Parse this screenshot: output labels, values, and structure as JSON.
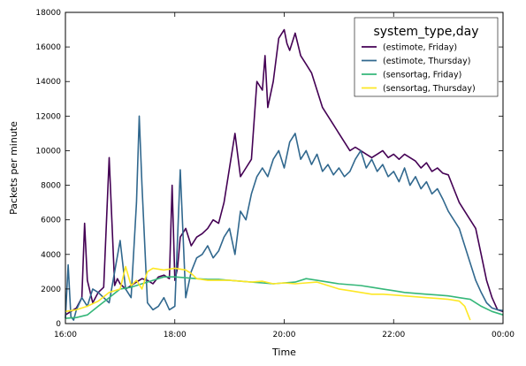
{
  "chart_data": {
    "type": "line",
    "title": "",
    "xlabel": "Time",
    "ylabel": "Packets per minute",
    "xlim": [
      0,
      8
    ],
    "ylim": [
      0,
      18000
    ],
    "grid": false,
    "legend_position": "top-right",
    "legend_title": "system_type,day",
    "x_ticks": [
      {
        "value": 0,
        "label": "16:00"
      },
      {
        "value": 2,
        "label": "18:00"
      },
      {
        "value": 4,
        "label": "20:00"
      },
      {
        "value": 6,
        "label": "22:00"
      },
      {
        "value": 8,
        "label": "00:00"
      }
    ],
    "y_ticks": [
      {
        "value": 0,
        "label": "0"
      },
      {
        "value": 2000,
        "label": "2000"
      },
      {
        "value": 4000,
        "label": "4000"
      },
      {
        "value": 6000,
        "label": "6000"
      },
      {
        "value": 8000,
        "label": "8000"
      },
      {
        "value": 10000,
        "label": "10000"
      },
      {
        "value": 12000,
        "label": "12000"
      },
      {
        "value": 14000,
        "label": "14000"
      },
      {
        "value": 16000,
        "label": "16000"
      },
      {
        "value": 18000,
        "label": "18000"
      }
    ],
    "series": [
      {
        "name": "(estimote, Friday)",
        "color": "#440154",
        "x": [
          0,
          0.1,
          0.2,
          0.3,
          0.35,
          0.4,
          0.5,
          0.6,
          0.7,
          0.8,
          0.9,
          0.95,
          1.0,
          1.1,
          1.2,
          1.3,
          1.4,
          1.5,
          1.6,
          1.7,
          1.8,
          1.9,
          1.95,
          2.0,
          2.05,
          2.1,
          2.2,
          2.3,
          2.4,
          2.5,
          2.6,
          2.7,
          2.8,
          2.9,
          3.0,
          3.1,
          3.2,
          3.3,
          3.4,
          3.5,
          3.6,
          3.65,
          3.7,
          3.8,
          3.9,
          4.0,
          4.05,
          4.1,
          4.2,
          4.3,
          4.4,
          4.5,
          4.6,
          4.7,
          4.8,
          4.9,
          5.0,
          5.1,
          5.2,
          5.3,
          5.4,
          5.5,
          5.6,
          5.7,
          5.8,
          5.9,
          6.0,
          6.1,
          6.2,
          6.3,
          6.4,
          6.5,
          6.6,
          6.7,
          6.8,
          6.9,
          7.0,
          7.1,
          7.2,
          7.3,
          7.4,
          7.5,
          7.6,
          7.7,
          7.8,
          7.9,
          8.0
        ],
        "y": [
          500,
          700,
          900,
          1500,
          5800,
          2500,
          1200,
          1800,
          2100,
          9600,
          2200,
          2600,
          2300,
          2000,
          2200,
          2400,
          2600,
          2500,
          2300,
          2700,
          2800,
          2600,
          8000,
          2500,
          3200,
          5000,
          5500,
          4500,
          5000,
          5200,
          5500,
          6000,
          5800,
          7000,
          9000,
          11000,
          8500,
          9000,
          9500,
          14000,
          13500,
          15500,
          12500,
          14000,
          16500,
          17000,
          16200,
          15800,
          16800,
          15500,
          15000,
          14500,
          13500,
          12500,
          12000,
          11500,
          11000,
          10500,
          10000,
          10200,
          10000,
          9800,
          9600,
          9800,
          10000,
          9600,
          9800,
          9500,
          9800,
          9600,
          9400,
          9000,
          9300,
          8800,
          9000,
          8700,
          8600,
          7800,
          7000,
          6500,
          6000,
          5500,
          4000,
          2500,
          1500,
          800,
          700
        ]
      },
      {
        "name": "(estimote, Thursday)",
        "color": "#31688e",
        "x": [
          0,
          0.05,
          0.1,
          0.15,
          0.2,
          0.3,
          0.4,
          0.5,
          0.6,
          0.7,
          0.8,
          0.9,
          1.0,
          1.1,
          1.2,
          1.3,
          1.35,
          1.4,
          1.5,
          1.6,
          1.7,
          1.8,
          1.9,
          2.0,
          2.1,
          2.2,
          2.3,
          2.4,
          2.5,
          2.6,
          2.7,
          2.8,
          2.9,
          3.0,
          3.1,
          3.2,
          3.3,
          3.4,
          3.5,
          3.6,
          3.7,
          3.8,
          3.9,
          4.0,
          4.1,
          4.2,
          4.3,
          4.4,
          4.5,
          4.6,
          4.7,
          4.8,
          4.9,
          5.0,
          5.1,
          5.2,
          5.3,
          5.4,
          5.5,
          5.6,
          5.7,
          5.8,
          5.9,
          6.0,
          6.1,
          6.2,
          6.3,
          6.4,
          6.5,
          6.6,
          6.7,
          6.8,
          6.9,
          7.0,
          7.1,
          7.2,
          7.3,
          7.4,
          7.5,
          7.6,
          7.7,
          7.8,
          7.9,
          8.0
        ],
        "y": [
          300,
          3400,
          400,
          200,
          800,
          1500,
          1000,
          2000,
          1800,
          1500,
          1200,
          3000,
          4800,
          2000,
          1500,
          7000,
          12000,
          8000,
          1200,
          800,
          1000,
          1500,
          800,
          1000,
          8900,
          1500,
          3000,
          3800,
          4000,
          4500,
          3800,
          4200,
          5000,
          5500,
          4000,
          6500,
          6000,
          7500,
          8500,
          9000,
          8500,
          9500,
          10000,
          9000,
          10500,
          11000,
          9500,
          10000,
          9200,
          9800,
          8800,
          9200,
          8600,
          9000,
          8500,
          8800,
          9500,
          10000,
          9000,
          9500,
          8800,
          9200,
          8500,
          8800,
          8200,
          9000,
          8000,
          8500,
          7800,
          8200,
          7500,
          7800,
          7200,
          6500,
          6000,
          5500,
          4500,
          3500,
          2500,
          1800,
          1200,
          900,
          800,
          750
        ]
      },
      {
        "name": "(sensortag, Friday)",
        "color": "#35b779",
        "x": [
          0,
          0.2,
          0.4,
          0.6,
          0.8,
          1.0,
          1.2,
          1.4,
          1.6,
          1.8,
          2.0,
          2.2,
          2.4,
          2.6,
          2.8,
          3.0,
          3.2,
          3.4,
          3.6,
          3.8,
          4.0,
          4.2,
          4.4,
          4.6,
          4.8,
          5.0,
          5.2,
          5.4,
          5.6,
          5.8,
          6.0,
          6.2,
          6.4,
          6.6,
          6.8,
          7.0,
          7.2,
          7.4,
          7.6,
          7.8,
          8.0
        ],
        "y": [
          300,
          350,
          500,
          1000,
          1500,
          2000,
          2100,
          2300,
          2500,
          2700,
          2700,
          2650,
          2600,
          2550,
          2550,
          2500,
          2450,
          2400,
          2350,
          2300,
          2350,
          2400,
          2600,
          2500,
          2400,
          2300,
          2250,
          2200,
          2100,
          2000,
          1900,
          1800,
          1750,
          1700,
          1650,
          1600,
          1500,
          1400,
          1000,
          700,
          500
        ]
      },
      {
        "name": "(sensortag, Thursday)",
        "color": "#fde725",
        "x": [
          0,
          0.2,
          0.4,
          0.6,
          0.8,
          1.0,
          1.1,
          1.2,
          1.3,
          1.4,
          1.5,
          1.6,
          1.8,
          2.0,
          2.2,
          2.3,
          2.4,
          2.6,
          2.8,
          3.0,
          3.2,
          3.4,
          3.6,
          3.8,
          4.0,
          4.2,
          4.4,
          4.6,
          4.8,
          5.0,
          5.2,
          5.4,
          5.6,
          5.8,
          6.0,
          6.2,
          6.4,
          6.6,
          6.8,
          7.0,
          7.2,
          7.3,
          7.4
        ],
        "y": [
          700,
          800,
          1000,
          1300,
          1800,
          2000,
          3300,
          2200,
          2500,
          2000,
          3000,
          3200,
          3100,
          3200,
          3100,
          2900,
          2600,
          2500,
          2500,
          2500,
          2450,
          2400,
          2450,
          2300,
          2350,
          2300,
          2350,
          2400,
          2200,
          2000,
          1900,
          1800,
          1700,
          1700,
          1650,
          1600,
          1550,
          1500,
          1450,
          1400,
          1300,
          1000,
          200
        ]
      }
    ]
  }
}
